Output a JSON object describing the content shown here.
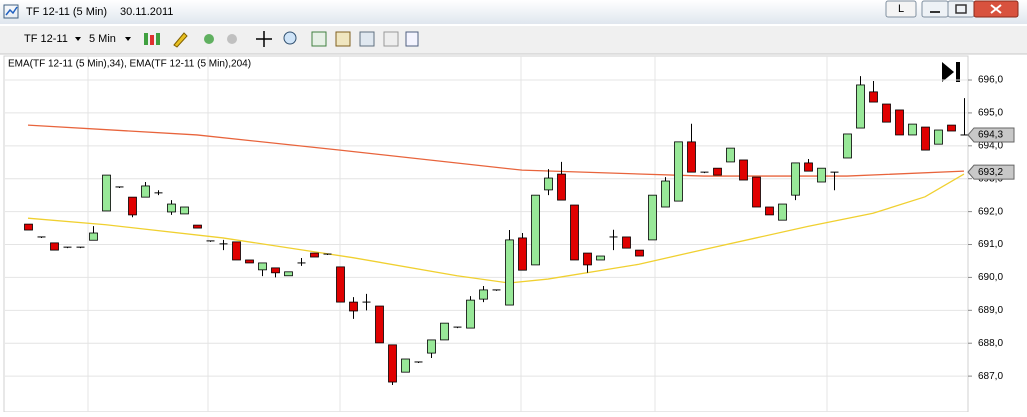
{
  "window": {
    "title": "TF 12-11 (5 Min)",
    "date": "30.11.2011",
    "button": "L"
  },
  "toolbar": {
    "instrument": "TF 12-11",
    "interval": "5 Min"
  },
  "chart_data": {
    "type": "candlestick",
    "legend": "EMA(TF 12-11 (5 Min),34), EMA(TF 12-11 (5 Min),204)",
    "ylim": [
      685.97,
      696.73
    ],
    "yticks": [
      {
        "value": 696,
        "label": "696,0"
      },
      {
        "value": 695,
        "label": "695,0"
      },
      {
        "value": 694,
        "label": "694,0"
      },
      {
        "value": 693,
        "label": "693,0"
      },
      {
        "value": 692,
        "label": "692,0"
      },
      {
        "value": 691,
        "label": "691,0"
      },
      {
        "value": 690,
        "label": "690,0"
      },
      {
        "value": 689,
        "label": "689,0"
      },
      {
        "value": 688,
        "label": "688,0"
      },
      {
        "value": 687,
        "label": "687,0"
      }
    ],
    "up_color": "#98e898",
    "down_color": "#e00000",
    "open": [
      691.62,
      691.23,
      691.05,
      690.92,
      690.92,
      691.13,
      692.02,
      692.75,
      692.44,
      692.44,
      692.57,
      691.99,
      691.93,
      691.59,
      691.11,
      691.02,
      691.08,
      690.53,
      690.23,
      690.29,
      690.05,
      690.44,
      690.74,
      690.71,
      690.32,
      689.25,
      689.25,
      689.13,
      687.95,
      687.12,
      687.43,
      687.7,
      688.1,
      688.49,
      688.46,
      689.34,
      689.62,
      689.16,
      691.2,
      690.38,
      692.66,
      693.14,
      692.2,
      690.74,
      690.53,
      691.23,
      691.23,
      690.83,
      691.14,
      692.14,
      692.32,
      694.12,
      693.2,
      693.32,
      693.51,
      693.57,
      693.05,
      692.14,
      691.74,
      692.5,
      693.48,
      692.9,
      693.2,
      693.63,
      694.54,
      695.64,
      695.27,
      695.09,
      694.33,
      694.57,
      694.05,
      694.63,
      694.33
    ],
    "high": [
      691.62,
      691.23,
      691.05,
      690.92,
      690.92,
      691.56,
      693.11,
      692.75,
      692.44,
      692.9,
      692.65,
      692.35,
      692.14,
      691.59,
      691.11,
      691.14,
      691.08,
      690.53,
      690.44,
      690.29,
      690.17,
      690.59,
      690.74,
      690.71,
      690.32,
      689.4,
      689.5,
      689.13,
      687.95,
      687.52,
      687.43,
      688.1,
      688.61,
      688.49,
      689.43,
      689.74,
      689.62,
      691.44,
      691.35,
      692.5,
      693.29,
      693.51,
      692.2,
      690.74,
      690.65,
      691.45,
      691.23,
      690.83,
      692.5,
      693.05,
      694.12,
      694.67,
      693.2,
      693.32,
      693.93,
      693.57,
      693.05,
      692.14,
      692.23,
      693.48,
      693.6,
      693.32,
      693.2,
      694.36,
      696.12,
      695.97,
      695.27,
      695.09,
      694.66,
      694.57,
      694.48,
      694.63,
      695.45
    ],
    "low": [
      691.44,
      691.23,
      690.83,
      690.92,
      690.92,
      691.13,
      692.02,
      692.75,
      691.83,
      692.44,
      692.5,
      691.9,
      691.93,
      691.5,
      691.11,
      690.83,
      690.53,
      690.44,
      690.04,
      690.0,
      690.05,
      690.35,
      690.62,
      690.71,
      689.25,
      688.74,
      689.0,
      688.01,
      686.73,
      687.12,
      687.43,
      687.55,
      688.1,
      688.49,
      688.46,
      689.25,
      689.62,
      689.16,
      690.22,
      690.38,
      692.5,
      692.35,
      690.53,
      690.14,
      690.53,
      690.83,
      690.89,
      690.65,
      691.14,
      692.14,
      692.32,
      693.2,
      693.2,
      693.11,
      693.51,
      692.96,
      692.14,
      691.9,
      691.74,
      692.35,
      693.23,
      692.9,
      692.65,
      693.63,
      694.54,
      695.33,
      694.72,
      694.33,
      694.33,
      693.87,
      694.05,
      694.45,
      694.33
    ],
    "close": [
      691.44,
      691.23,
      690.83,
      690.92,
      690.92,
      691.35,
      693.11,
      692.75,
      691.9,
      692.78,
      692.57,
      692.23,
      692.14,
      691.5,
      691.11,
      691.02,
      690.53,
      690.44,
      690.44,
      690.14,
      690.17,
      690.44,
      690.62,
      690.71,
      689.25,
      688.98,
      689.25,
      688.01,
      686.82,
      687.52,
      687.43,
      688.1,
      688.61,
      688.49,
      689.31,
      689.62,
      689.62,
      691.14,
      690.22,
      692.5,
      693.02,
      692.35,
      690.53,
      690.38,
      690.65,
      691.23,
      690.89,
      690.65,
      692.5,
      692.93,
      694.12,
      693.2,
      693.2,
      693.11,
      693.93,
      692.96,
      692.14,
      691.9,
      692.23,
      693.48,
      693.23,
      693.32,
      693.2,
      694.36,
      695.85,
      695.33,
      694.72,
      694.33,
      694.66,
      693.87,
      694.48,
      694.45,
      694.33
    ],
    "series": [
      {
        "color": "#f0d030",
        "x": [
          0,
          6,
          15,
          25,
          33,
          37,
          40,
          47,
          52,
          56,
          60,
          65,
          69,
          72
        ],
        "values": [
          691.8,
          691.6,
          691.2,
          690.6,
          690.05,
          689.83,
          689.95,
          690.4,
          690.85,
          691.2,
          691.55,
          691.95,
          692.45,
          693.14
        ]
      },
      {
        "color": "#e8643c",
        "x": [
          0,
          13,
          24,
          38,
          52,
          63,
          72
        ],
        "values": [
          694.63,
          694.33,
          693.87,
          693.26,
          693.08,
          693.08,
          693.23
        ]
      }
    ],
    "price_markers": [
      {
        "value": 694.33,
        "label": "694,3"
      },
      {
        "value": 693.2,
        "label": "693,2"
      }
    ]
  }
}
